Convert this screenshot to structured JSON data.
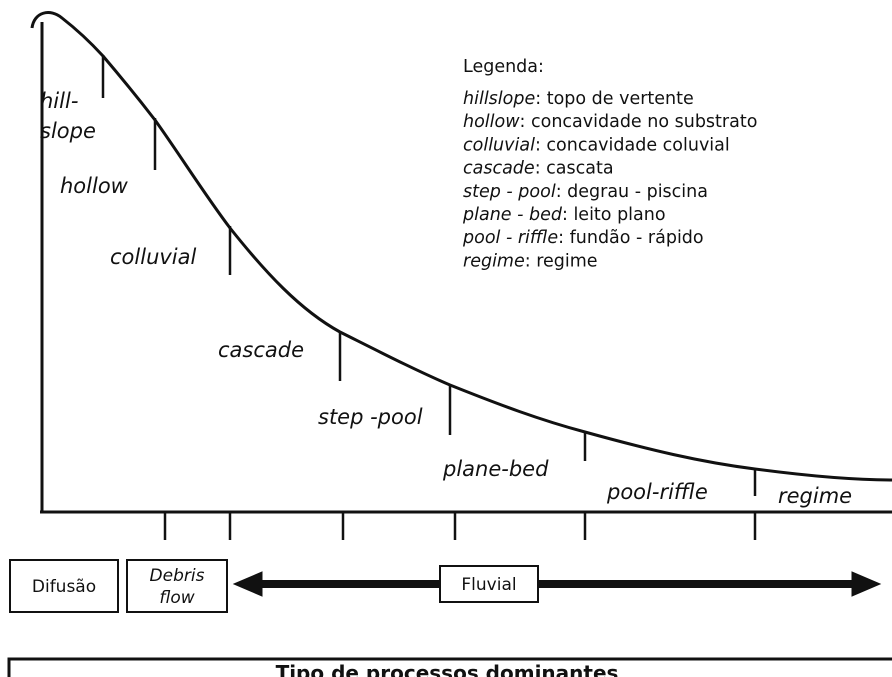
{
  "curve_labels": [
    "hill-",
    "slope",
    "hollow",
    "colluvial",
    "cascade",
    "step -pool",
    "plane-bed",
    "pool-riffle",
    "regime"
  ],
  "legend": {
    "title": "Legenda:",
    "items": [
      {
        "term": "hillslope",
        "text": ": topo de vertente"
      },
      {
        "term": "hollow",
        "text": ": concavidade no substrato"
      },
      {
        "term": "colluvial",
        "text": ": concavidade coluvial"
      },
      {
        "term": "cascade",
        "text": ": cascata"
      },
      {
        "term": "step - pool",
        "text": ": degrau - piscina"
      },
      {
        "term": "plane - bed",
        "text": ": leito plano"
      },
      {
        "term": "pool - riffle",
        "text": ": fundão - rápido"
      },
      {
        "term": "regime",
        "text": ": regime"
      }
    ]
  },
  "processes": {
    "diffusion": "Difusão",
    "debris": [
      "Debris",
      "flow"
    ],
    "fluvial": "Fluvial"
  },
  "footer": {
    "title": "Tipo de processos dominantes"
  }
}
